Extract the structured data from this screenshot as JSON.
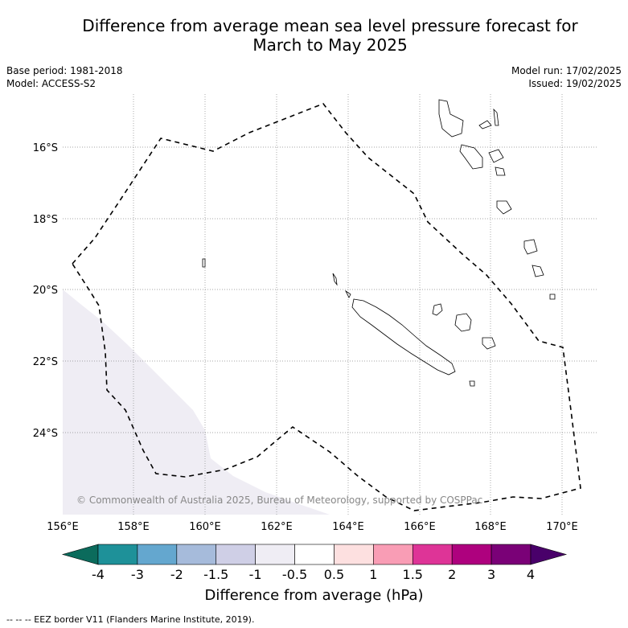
{
  "title_line1": "Difference from average mean sea level pressure forecast for",
  "title_line2": "March to May 2025",
  "base_period": "Base period: 1981-2018",
  "model": "Model: ACCESS-S2",
  "model_run": "Model run: 17/02/2025",
  "issued": "Issued: 19/02/2025",
  "copyright": "© Commonwealth of Australia 2025, Bureau of Meteorology, supported by COSPPac",
  "lon_labels": [
    "156°E",
    "158°E",
    "160°E",
    "162°E",
    "164°E",
    "166°E",
    "168°E",
    "170°E"
  ],
  "lat_labels": [
    "16°S",
    "18°S",
    "20°S",
    "22°S",
    "24°S"
  ],
  "colorbar": {
    "ticks": [
      "-4",
      "-3",
      "-2",
      "-1.5",
      "-1",
      "-0.5",
      "0.5",
      "1",
      "1.5",
      "2",
      "3",
      "4"
    ],
    "colors": [
      "#0b6b5c",
      "#1e9199",
      "#64a7cf",
      "#a6bbdb",
      "#cfcfe6",
      "#efedf4",
      "#ffffff",
      "#fde0e0",
      "#f99db5",
      "#de3497",
      "#ae017e",
      "#7a0177",
      "#49006a"
    ],
    "title": "Difference from average (hPa)"
  },
  "footnote": "--  --  -- EEZ border V11 (Flanders Marine Institute, 2019)."
}
